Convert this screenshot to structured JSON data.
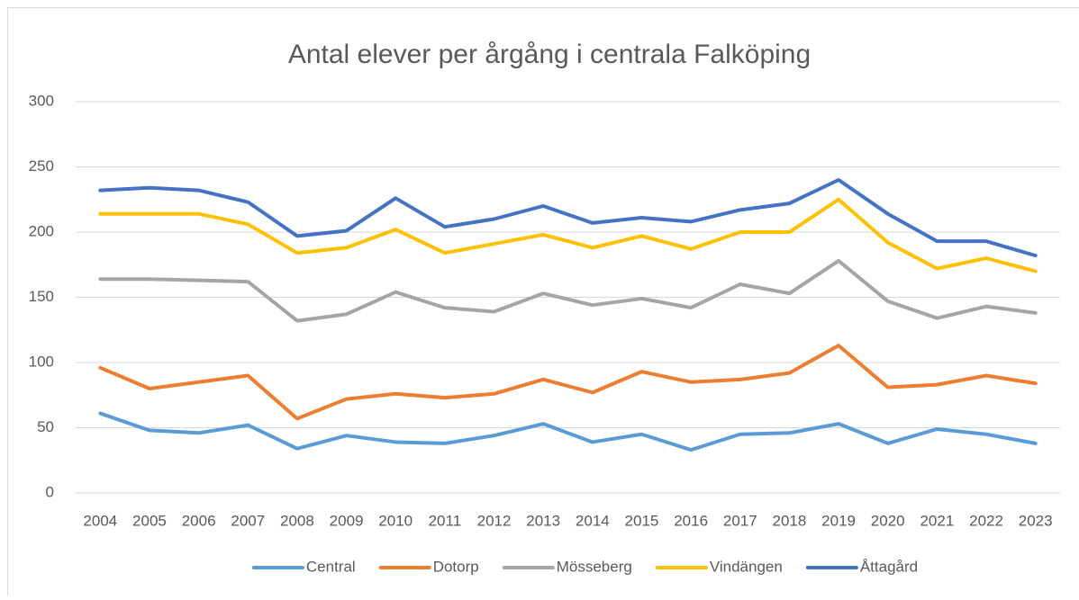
{
  "chart_data": {
    "type": "line",
    "title": "Antal elever per årgång i centrala Falköping",
    "categories": [
      "2004",
      "2005",
      "2006",
      "2007",
      "2008",
      "2009",
      "2010",
      "2011",
      "2012",
      "2013",
      "2014",
      "2015",
      "2016",
      "2017",
      "2018",
      "2019",
      "2020",
      "2021",
      "2022",
      "2023"
    ],
    "series": [
      {
        "name": "Central",
        "color": "#5b9bd5",
        "values": [
          61,
          48,
          46,
          52,
          34,
          44,
          39,
          38,
          44,
          53,
          39,
          45,
          33,
          45,
          46,
          53,
          38,
          49,
          45,
          38
        ]
      },
      {
        "name": "Dotorp",
        "color": "#ed7d31",
        "values": [
          96,
          80,
          85,
          90,
          57,
          72,
          76,
          73,
          76,
          87,
          77,
          93,
          85,
          87,
          92,
          113,
          81,
          83,
          90,
          84
        ]
      },
      {
        "name": "Mösseberg",
        "color": "#a5a5a5",
        "values": [
          164,
          164,
          163,
          162,
          132,
          137,
          154,
          142,
          139,
          153,
          144,
          149,
          142,
          160,
          153,
          178,
          147,
          134,
          143,
          138
        ]
      },
      {
        "name": "Vindängen",
        "color": "#ffc000",
        "values": [
          214,
          214,
          214,
          206,
          184,
          188,
          202,
          184,
          191,
          198,
          188,
          197,
          187,
          200,
          200,
          225,
          192,
          172,
          180,
          170
        ]
      },
      {
        "name": "Åttagård",
        "color": "#4472c4",
        "values": [
          232,
          234,
          232,
          223,
          197,
          201,
          226,
          204,
          210,
          220,
          207,
          211,
          208,
          217,
          222,
          240,
          214,
          193,
          193,
          182
        ]
      }
    ],
    "ylim": [
      0,
      300
    ],
    "yticks": [
      0,
      50,
      100,
      150,
      200,
      250,
      300
    ],
    "grid": true,
    "legend": "bottom"
  }
}
